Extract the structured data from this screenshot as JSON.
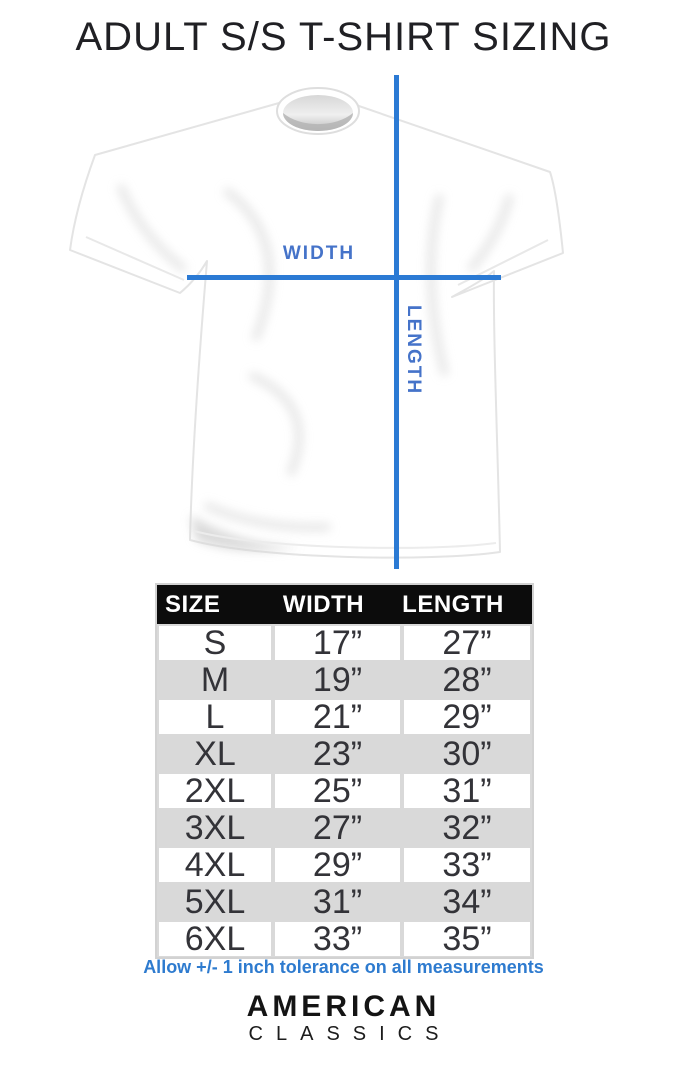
{
  "title": "ADULT S/S T-SHIRT SIZING",
  "diagram": {
    "width_label": "WIDTH",
    "length_label": "LENGTH"
  },
  "table": {
    "headers": [
      "SIZE",
      "WIDTH",
      "LENGTH"
    ],
    "rows": [
      {
        "size": "S",
        "width": "17”",
        "length": "27”"
      },
      {
        "size": "M",
        "width": "19”",
        "length": "28”"
      },
      {
        "size": "L",
        "width": "21”",
        "length": "29”"
      },
      {
        "size": "XL",
        "width": "23”",
        "length": "30”"
      },
      {
        "size": "2XL",
        "width": "25”",
        "length": "31”"
      },
      {
        "size": "3XL",
        "width": "27”",
        "length": "32”"
      },
      {
        "size": "4XL",
        "width": "29”",
        "length": "33”"
      },
      {
        "size": "5XL",
        "width": "31”",
        "length": "34”"
      },
      {
        "size": "6XL",
        "width": "33”",
        "length": "35”"
      }
    ]
  },
  "note": "Allow +/- 1 inch tolerance on all measurements",
  "logo": {
    "line1": "AMERICAN",
    "line2": "CLASSICS"
  },
  "colors": {
    "blue-line": "#2b7ad4",
    "blue-label": "#4573c9",
    "blue-note": "#2e7bcf",
    "header-bg": "#0c0c0c",
    "row-gray": "#d9d9d9"
  }
}
